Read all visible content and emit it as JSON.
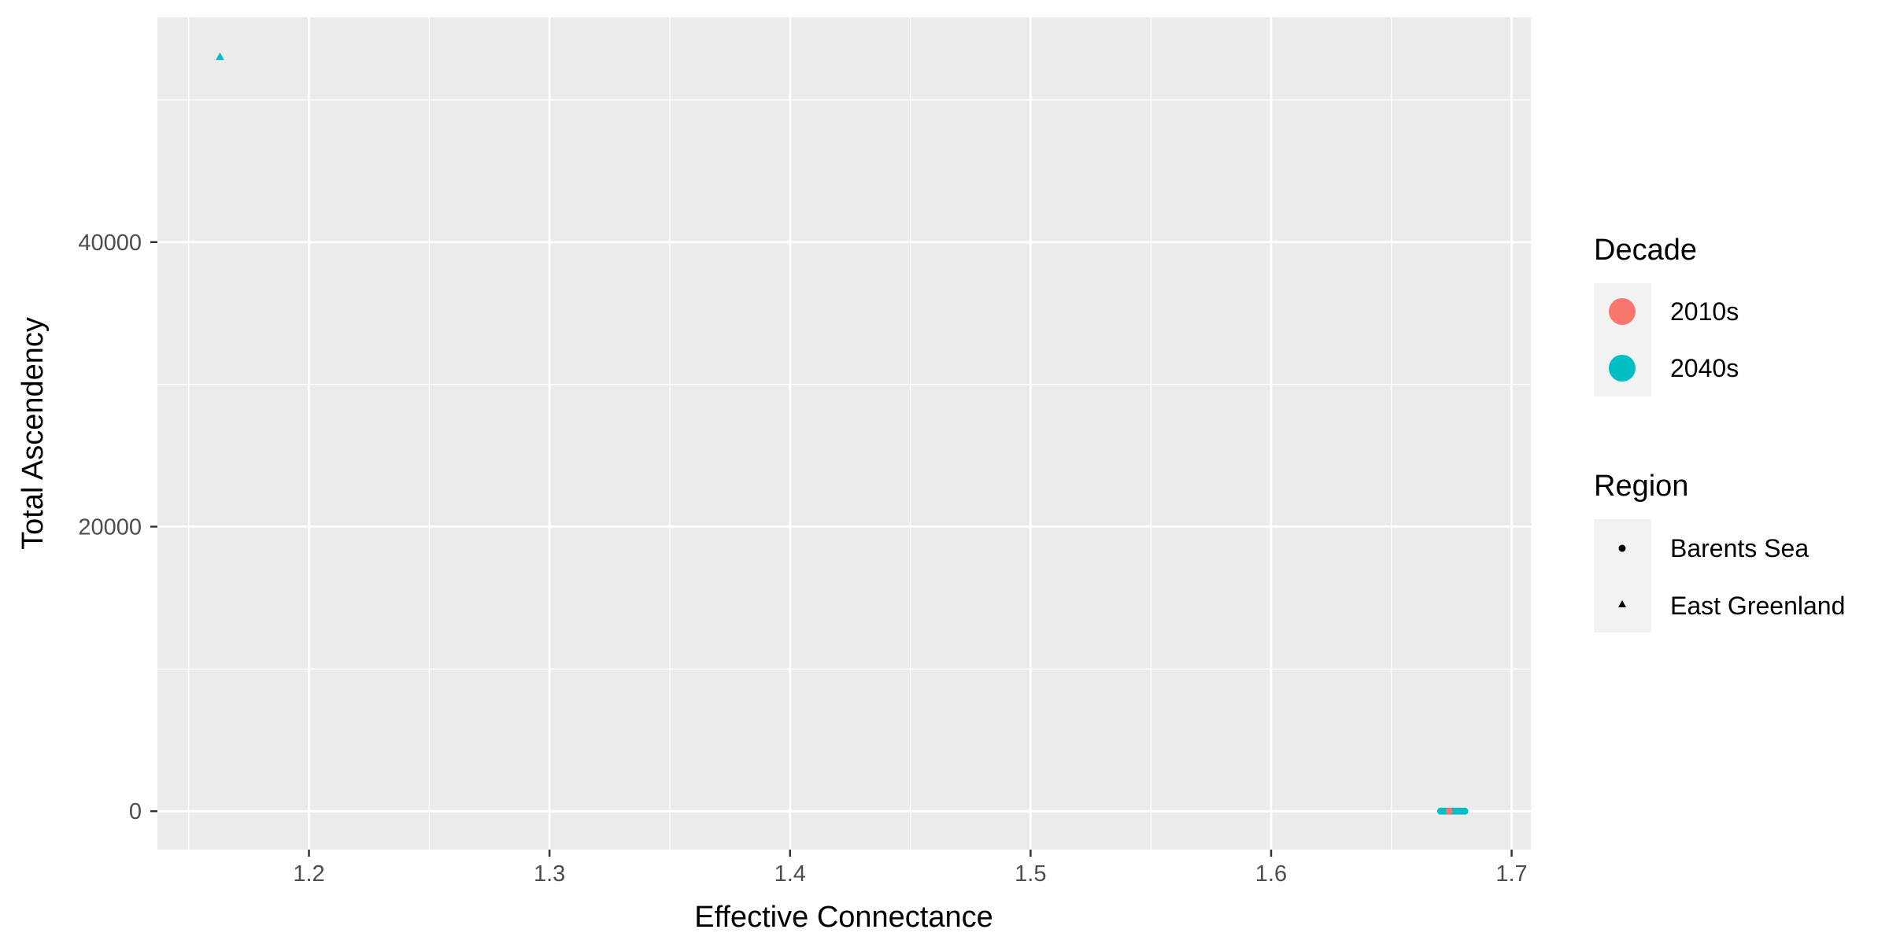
{
  "chart_data": {
    "type": "scatter",
    "title": "",
    "xlabel": "Effective Connectance",
    "ylabel": "Total Ascendency",
    "xlim": [
      1.137,
      1.708
    ],
    "ylim": [
      -2700,
      55800
    ],
    "x_ticks": [
      1.2,
      1.3,
      1.4,
      1.5,
      1.6,
      1.7
    ],
    "x_tick_labels": [
      "1.2",
      "1.3",
      "1.4",
      "1.5",
      "1.6",
      "1.7"
    ],
    "y_ticks": [
      0,
      20000,
      40000
    ],
    "y_tick_labels": [
      "0",
      "20000",
      "40000"
    ],
    "grid": true,
    "legend_position": "right",
    "legends": [
      {
        "title": "Decade",
        "entries": [
          {
            "label": "2010s",
            "color": "#F8766D",
            "shape": "circle"
          },
          {
            "label": "2040s",
            "color": "#00BFC4",
            "shape": "circle"
          }
        ]
      },
      {
        "title": "Region",
        "entries": [
          {
            "label": "Barents Sea",
            "color": "#000000",
            "shape": "circle"
          },
          {
            "label": "East Greenland",
            "color": "#000000",
            "shape": "triangle"
          }
        ]
      }
    ],
    "series": [
      {
        "decade": "2040s",
        "region": "East Greenland",
        "color": "#00BFC4",
        "shape": "triangle",
        "points": [
          {
            "x": 1.163,
            "y": 53000
          }
        ]
      },
      {
        "decade": "2040s",
        "region": "Barents Sea",
        "color": "#00BFC4",
        "shape": "circle",
        "points": [
          {
            "x": 1.6705,
            "y": 0
          },
          {
            "x": 1.6715,
            "y": 0
          },
          {
            "x": 1.6725,
            "y": 0
          },
          {
            "x": 1.6735,
            "y": 0
          },
          {
            "x": 1.6745,
            "y": 0
          },
          {
            "x": 1.6755,
            "y": 0
          },
          {
            "x": 1.6765,
            "y": 0
          },
          {
            "x": 1.6775,
            "y": 0
          },
          {
            "x": 1.6785,
            "y": 0
          },
          {
            "x": 1.6795,
            "y": 0
          },
          {
            "x": 1.6805,
            "y": 0
          }
        ]
      },
      {
        "decade": "2010s",
        "region": "Barents Sea",
        "color": "#F8766D",
        "shape": "circle",
        "points": [
          {
            "x": 1.674,
            "y": 0
          }
        ]
      }
    ]
  }
}
